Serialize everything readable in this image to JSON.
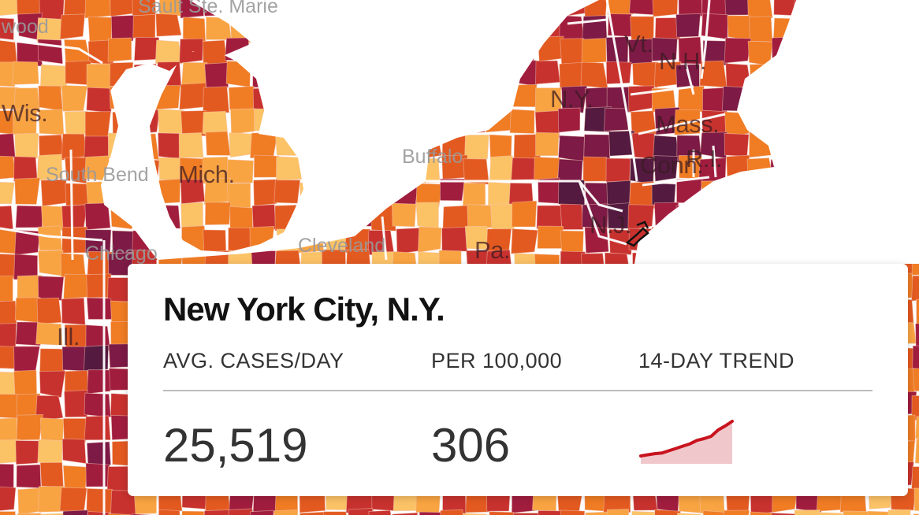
{
  "map": {
    "state_labels": [
      "Wis.",
      "Mich.",
      "Ill.",
      "N.Y.",
      "Vt.",
      "N.H.",
      "Mass.",
      "Conn.",
      "R.I.",
      "N.J.",
      "Pa."
    ],
    "city_labels": [
      "Sault Ste. Marie",
      "wood",
      "South Bend",
      "Chicago",
      "Cleveland",
      "Buffalo"
    ],
    "colors": {
      "lightest": "#fcc266",
      "light": "#f9a442",
      "medium_light": "#f07c24",
      "medium": "#e35a20",
      "medium_dark": "#c8322e",
      "dark": "#a11d3e",
      "darker": "#7d1a45",
      "darkest": "#541a40",
      "border": "#f3c6b8",
      "state_border": "#ffffff"
    }
  },
  "tooltip": {
    "title": "New York City, N.Y.",
    "columns": {
      "avg_cases_label": "AVG. CASES/DAY",
      "per_100k_label": "PER 100,000",
      "trend_label": "14-DAY TREND"
    },
    "values": {
      "avg_cases": "25,519",
      "per_100k": "306"
    },
    "trend": {
      "line_color": "#c8141e",
      "fill_color": "#f0c8cc",
      "values": [
        0,
        2,
        4,
        5,
        9,
        13,
        17,
        21,
        27,
        30,
        34,
        45,
        52,
        60
      ]
    }
  }
}
